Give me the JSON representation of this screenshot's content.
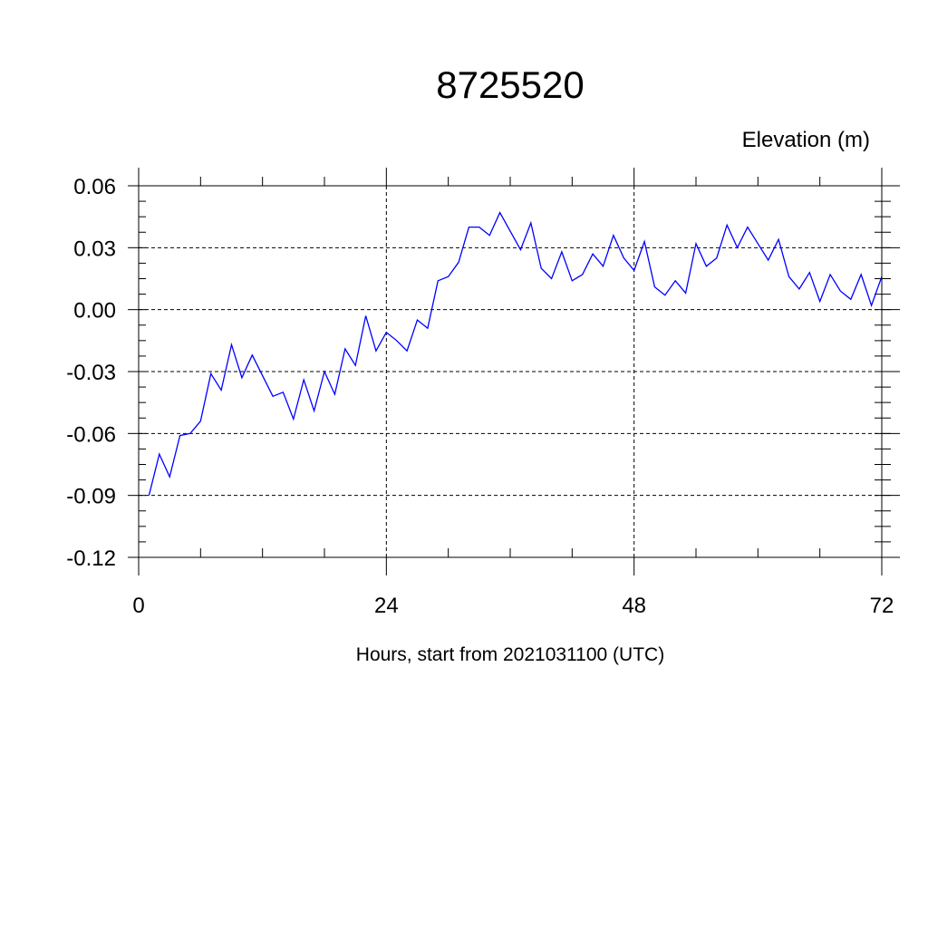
{
  "chart_data": {
    "type": "line",
    "title": "8725520",
    "ylabel": "Elevation (m)",
    "xlabel": "Hours, start from 2021031100 (UTC)",
    "xlim": [
      0,
      72
    ],
    "ylim": [
      -0.12,
      0.06
    ],
    "x_ticks": [
      0,
      24,
      48,
      72
    ],
    "x_tick_labels": [
      "0",
      "24",
      "48",
      "72"
    ],
    "y_ticks": [
      0.06,
      0.03,
      0.0,
      -0.03,
      -0.06,
      -0.09,
      -0.12
    ],
    "y_tick_labels": [
      "0.06",
      "0.03",
      "0.00",
      "-0.03",
      "-0.06",
      "-0.09",
      "-0.12"
    ],
    "grid": true,
    "line_color": "#0000ff",
    "series": [
      {
        "x": [
          1,
          2,
          3,
          4,
          5,
          6,
          7,
          8,
          9,
          10,
          11,
          12,
          13,
          14,
          15,
          16,
          17,
          18,
          19,
          20,
          21,
          22,
          23,
          24,
          25,
          26,
          27,
          28,
          29,
          30,
          31,
          32,
          33,
          34,
          35,
          36,
          37,
          38,
          39,
          40,
          41,
          42,
          43,
          44,
          45,
          46,
          47,
          48,
          49,
          50,
          51,
          52,
          53,
          54,
          55,
          56,
          57,
          58,
          59,
          60,
          61,
          62,
          63,
          64,
          65,
          66,
          67,
          68,
          69,
          70,
          71,
          72
        ],
        "values": [
          -0.09,
          -0.07,
          -0.081,
          -0.061,
          -0.06,
          -0.054,
          -0.031,
          -0.039,
          -0.017,
          -0.033,
          -0.022,
          -0.032,
          -0.042,
          -0.04,
          -0.053,
          -0.034,
          -0.049,
          -0.03,
          -0.041,
          -0.019,
          -0.027,
          -0.003,
          -0.02,
          -0.011,
          -0.015,
          -0.02,
          -0.005,
          -0.009,
          0.014,
          0.016,
          0.023,
          0.04,
          0.04,
          0.036,
          0.047,
          0.038,
          0.029,
          0.042,
          0.02,
          0.015,
          0.028,
          0.014,
          0.017,
          0.027,
          0.021,
          0.036,
          0.025,
          0.019,
          0.033,
          0.011,
          0.007,
          0.014,
          0.008,
          0.032,
          0.021,
          0.025,
          0.041,
          0.03,
          0.04,
          0.032,
          0.024,
          0.034,
          0.016,
          0.01,
          0.018,
          0.004,
          0.017,
          0.009,
          0.005,
          0.017,
          0.002,
          0.016
        ]
      }
    ]
  }
}
